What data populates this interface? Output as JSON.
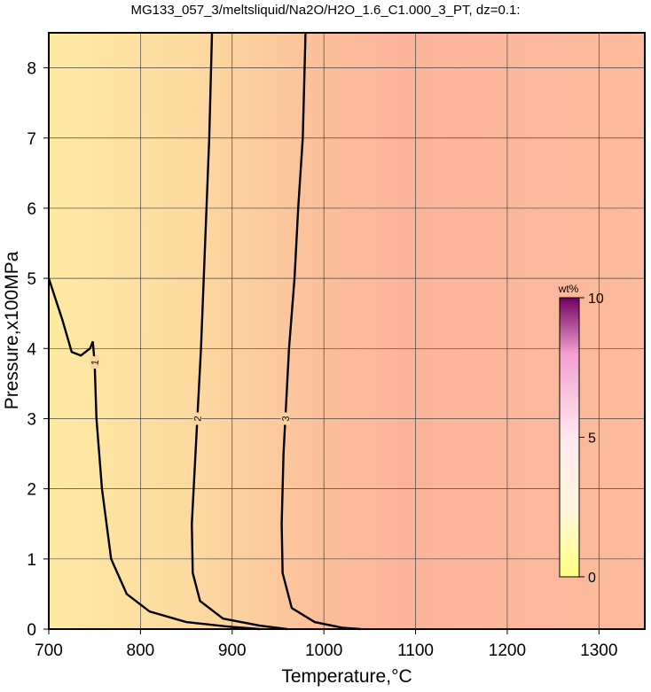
{
  "chart_data": {
    "type": "contour",
    "title": "MG133_057_3/meltsliquid/Na2O/H2O_1.6_C1.000_3_PT, dz=0.1:",
    "xlabel": "Temperature,°C",
    "ylabel": "Pressure,x100MPa",
    "xlim": [
      700,
      1350
    ],
    "ylim": [
      0,
      8.5
    ],
    "xticks": [
      700,
      800,
      900,
      1000,
      1100,
      1200,
      1300
    ],
    "yticks": [
      0,
      1,
      2,
      3,
      4,
      5,
      6,
      7,
      8
    ],
    "grid": true,
    "contours": [
      {
        "level": 1,
        "x": [
          700,
          715,
          725,
          735,
          745,
          748,
          750,
          752,
          758,
          768,
          785,
          810,
          850,
          900,
          930
        ],
        "y": [
          5.0,
          4.4,
          3.95,
          3.9,
          4.0,
          4.1,
          3.8,
          3.0,
          2.0,
          1.0,
          0.5,
          0.25,
          0.1,
          0.03,
          0
        ]
      },
      {
        "level": 2,
        "x": [
          878,
          875,
          872,
          869,
          866,
          862,
          860,
          856,
          857,
          865,
          890,
          930,
          960
        ],
        "y": [
          8.5,
          7,
          6,
          5,
          4,
          3,
          2.5,
          1.5,
          0.8,
          0.4,
          0.15,
          0.05,
          0
        ]
      },
      {
        "level": 3,
        "x": [
          980,
          977,
          972,
          968,
          962,
          958,
          956,
          954,
          955,
          965,
          990,
          1020,
          1040
        ],
        "y": [
          8.5,
          7,
          6,
          5,
          4,
          3,
          2.5,
          1.5,
          0.8,
          0.3,
          0.1,
          0.02,
          0
        ]
      }
    ],
    "colorbar": {
      "label": "wt%",
      "lim": [
        0,
        10
      ],
      "ticks": [
        0,
        5,
        10
      ]
    }
  }
}
